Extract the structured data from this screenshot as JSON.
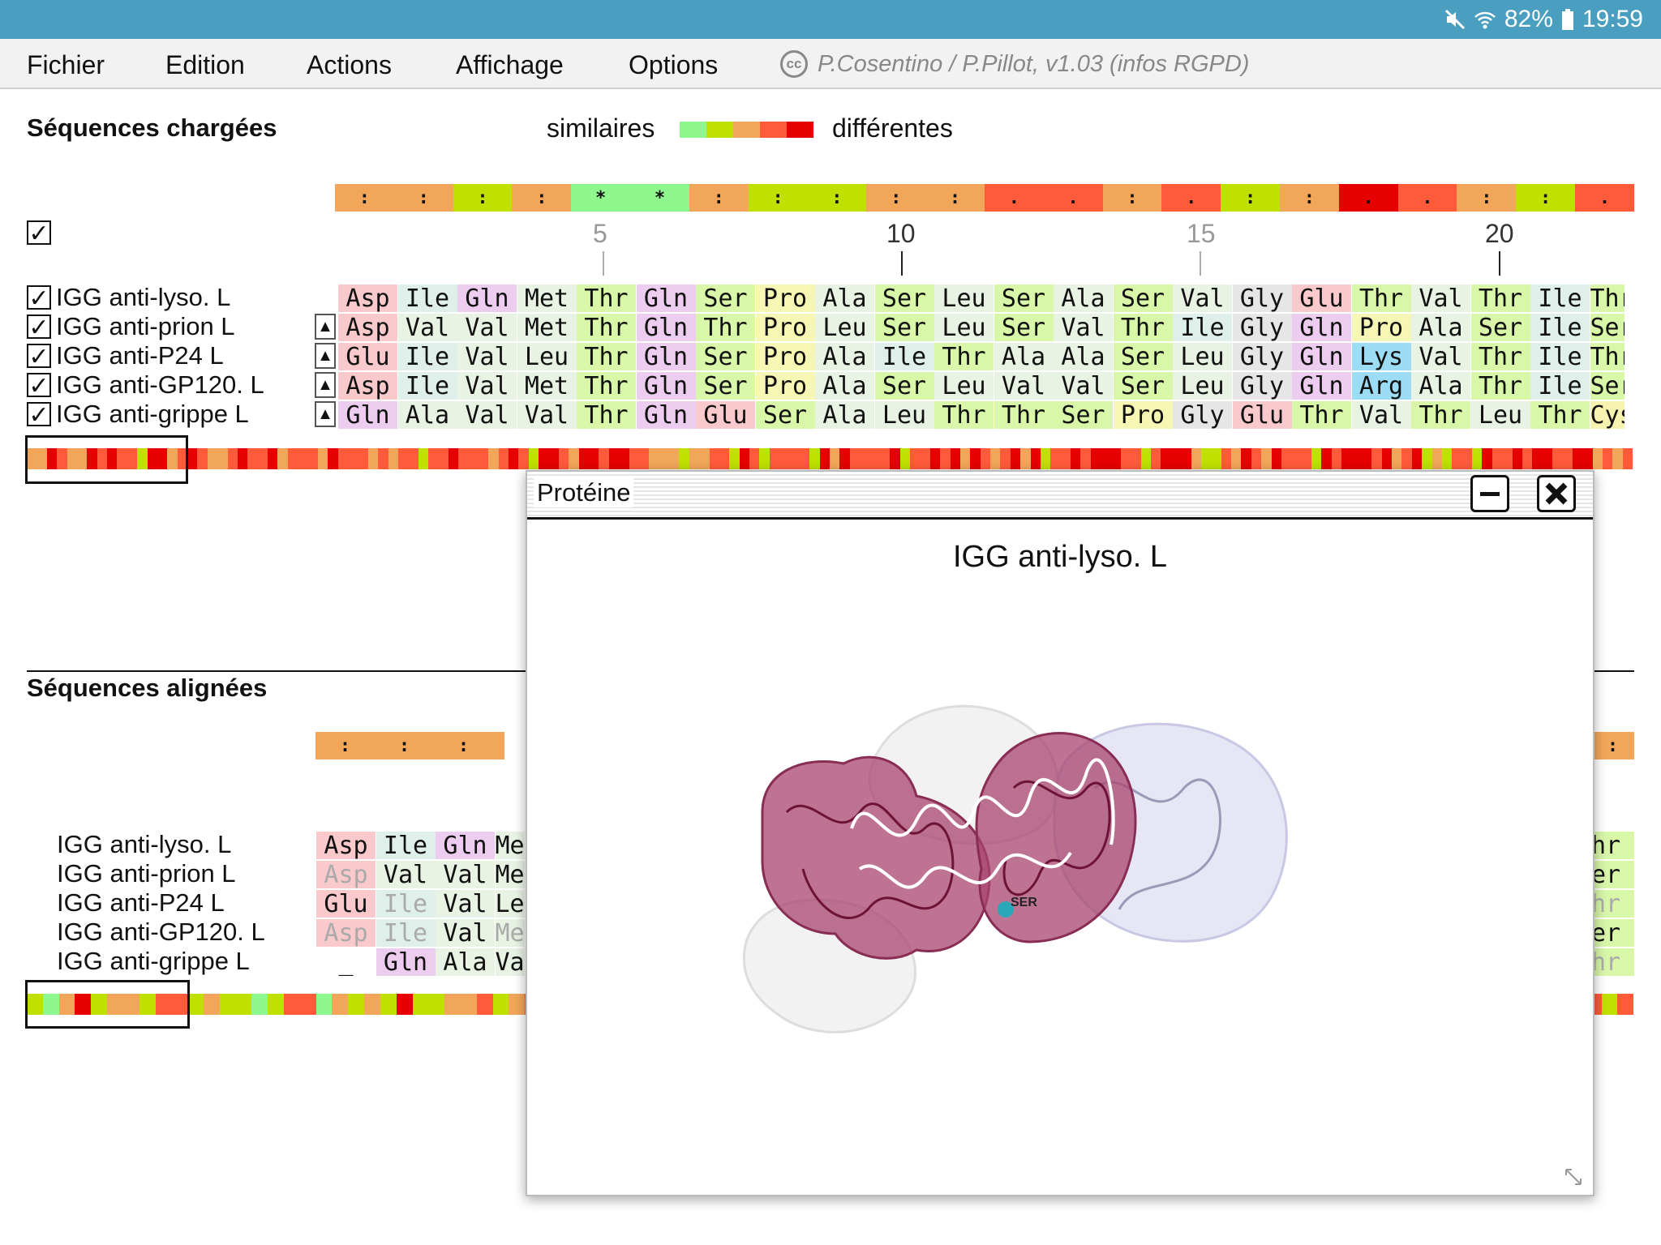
{
  "status": {
    "battery": "82%",
    "time": "19:59",
    "icons": [
      "mute-icon",
      "wifi-icon",
      "battery-icon"
    ]
  },
  "menu": {
    "items": [
      "Fichier",
      "Edition",
      "Actions",
      "Affichage",
      "Options"
    ],
    "credit": "P.Cosentino / P.Pillot, v1.03 (infos RGPD)",
    "cc_icon": "cc"
  },
  "loaded": {
    "title": "Séquences chargées",
    "legend_similar": "similaires",
    "legend_different": "différentes",
    "legend_colors": [
      "#8ef78e",
      "#c0e000",
      "#f2a65a",
      "#ff5a3a",
      "#e60000"
    ],
    "all_check": "✓",
    "ruler": [
      "5",
      "10",
      "15",
      "20"
    ],
    "consensus": [
      ":",
      ":",
      ":",
      ":",
      "*",
      "*",
      ":",
      ":",
      ":",
      ":",
      ":",
      ".",
      ".",
      ":",
      ".",
      ":",
      ":",
      ".",
      ".",
      ":",
      ":",
      "."
    ],
    "rows": [
      {
        "label": "IGG anti-lyso. L",
        "checked": "✓",
        "arrow": "",
        "seq": [
          "Asp",
          "Ile",
          "Gln",
          "Met",
          "Thr",
          "Gln",
          "Ser",
          "Pro",
          "Ala",
          "Ser",
          "Leu",
          "Ser",
          "Ala",
          "Ser",
          "Val",
          "Gly",
          "Glu",
          "Thr",
          "Val",
          "Thr",
          "Ile",
          "Thr"
        ]
      },
      {
        "label": "IGG anti-prion L",
        "checked": "✓",
        "arrow": "▲",
        "seq": [
          "Asp",
          "Val",
          "Val",
          "Met",
          "Thr",
          "Gln",
          "Thr",
          "Pro",
          "Leu",
          "Ser",
          "Leu",
          "Ser",
          "Val",
          "Thr",
          "Ile",
          "Gly",
          "Gln",
          "Pro",
          "Ala",
          "Ser",
          "Ile",
          "Ser"
        ]
      },
      {
        "label": "IGG anti-P24 L",
        "checked": "✓",
        "arrow": "▲",
        "seq": [
          "Glu",
          "Ile",
          "Val",
          "Leu",
          "Thr",
          "Gln",
          "Ser",
          "Pro",
          "Ala",
          "Ile",
          "Thr",
          "Ala",
          "Ala",
          "Ser",
          "Leu",
          "Gly",
          "Gln",
          "Lys",
          "Val",
          "Thr",
          "Ile",
          "Thr"
        ]
      },
      {
        "label": "IGG anti-GP120. L",
        "checked": "✓",
        "arrow": "▲",
        "seq": [
          "Asp",
          "Ile",
          "Val",
          "Met",
          "Thr",
          "Gln",
          "Ser",
          "Pro",
          "Ala",
          "Ser",
          "Leu",
          "Val",
          "Val",
          "Ser",
          "Leu",
          "Gly",
          "Gln",
          "Arg",
          "Ala",
          "Thr",
          "Ile",
          "Ser"
        ]
      },
      {
        "label": "IGG anti-grippe L",
        "checked": "✓",
        "arrow": "▲",
        "seq": [
          "Gln",
          "Ala",
          "Val",
          "Val",
          "Thr",
          "Gln",
          "Glu",
          "Ser",
          "Ala",
          "Leu",
          "Thr",
          "Thr",
          "Ser",
          "Pro",
          "Gly",
          "Glu",
          "Thr",
          "Val",
          "Thr",
          "Leu",
          "Thr",
          "Cys"
        ]
      }
    ]
  },
  "aligned": {
    "title": "Séquences alignées",
    "consensus": [
      ":",
      ":",
      ":"
    ],
    "consensus_right": ":",
    "rows": [
      {
        "label": "IGG anti-lyso. L",
        "seq": [
          "Asp",
          "Ile",
          "Gln",
          "Me"
        ],
        "right": "hr"
      },
      {
        "label": "IGG anti-prion L",
        "seq": [
          "Asp",
          "Val",
          "Val",
          "Me"
        ],
        "right": "er"
      },
      {
        "label": "IGG anti-P24 L",
        "seq": [
          "Glu",
          "Ile",
          "Val",
          "Le"
        ],
        "right": "hr"
      },
      {
        "label": "IGG anti-GP120. L",
        "seq": [
          "Asp",
          "Ile",
          "Val",
          "Me"
        ],
        "right": "er"
      },
      {
        "label": "IGG anti-grippe L",
        "seq": [
          "_",
          "Gln",
          "Ala",
          "Va"
        ],
        "right": "hr"
      }
    ]
  },
  "dialog": {
    "title": "Protéine",
    "protein_name": "IGG anti-lyso. L",
    "residue_label": "SER",
    "minimize_icon": "minimize-icon",
    "close_icon": "close-icon",
    "resize_icon": "resize-icon"
  }
}
